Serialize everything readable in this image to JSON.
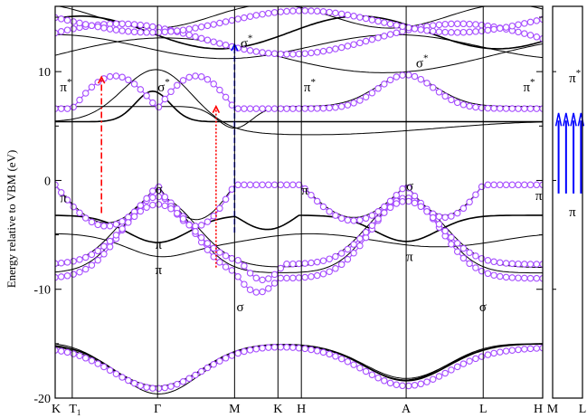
{
  "chart_data": {
    "type": "line",
    "title": "",
    "ylabel": "Energy relative to VBM (eV)",
    "ylim": [
      -20,
      16
    ],
    "yticks": [
      -20,
      -10,
      0,
      10
    ],
    "ytick_labels": [
      "-20",
      "-10",
      "0",
      "10"
    ],
    "grid": false,
    "legend": "none",
    "colors": {
      "bands": "#000000",
      "markers": "#a64dff",
      "marker_fill": "#ffffff",
      "arrow_red": "#ff0000",
      "arrow_blue": "#0000ff"
    },
    "panels": [
      {
        "id": "main",
        "x_points": [
          {
            "label": "K",
            "pos": 0.0
          },
          {
            "label": "T",
            "pos": 0.035,
            "subscript": "1"
          },
          {
            "label": "Γ",
            "pos": 0.21
          },
          {
            "label": "M",
            "pos": 0.368
          },
          {
            "label": "K",
            "pos": 0.457
          },
          {
            "label": "H",
            "pos": 0.505
          },
          {
            "label": "A",
            "pos": 0.72
          },
          {
            "label": "L",
            "pos": 0.878
          },
          {
            "label": "H",
            "pos": 1.0
          }
        ]
      },
      {
        "id": "inset",
        "x_points": [
          {
            "label": "M",
            "pos": 0.0
          },
          {
            "label": "L",
            "pos": 1.0
          }
        ]
      }
    ],
    "marked_bands_energy_points": [
      [
        0,
        -0.3
      ],
      [
        0.035,
        -0.8
      ],
      [
        0.1,
        -2.5
      ],
      [
        0.21,
        -1.5
      ],
      [
        0.3,
        -2.4
      ],
      [
        0.368,
        -4.8
      ],
      [
        0.457,
        -3.2
      ],
      [
        0.505,
        0.0
      ],
      [
        0.6,
        -0.6
      ],
      [
        0.72,
        -1.5
      ],
      [
        0.8,
        -0.8
      ],
      [
        0.878,
        -0.6
      ],
      [
        1.0,
        -0.2
      ]
    ],
    "annotations": [
      {
        "text": "π",
        "sup": "*",
        "x": 0.01,
        "y": 8.2
      },
      {
        "text": "σ",
        "sup": "*",
        "x": 0.21,
        "y": 8.2
      },
      {
        "text": "σ",
        "sup": "*",
        "x": 0.38,
        "y": 12.2
      },
      {
        "text": "π",
        "sup": "*",
        "x": 0.51,
        "y": 8.2
      },
      {
        "text": "σ",
        "sup": "*",
        "x": 0.74,
        "y": 10.4
      },
      {
        "text": "π",
        "sup": "*",
        "x": 0.96,
        "y": 8.2
      },
      {
        "text": "π",
        "sup": "",
        "x": 0.01,
        "y": -2.0
      },
      {
        "text": "σ",
        "sup": "",
        "x": 0.205,
        "y": -1.2
      },
      {
        "text": "π",
        "sup": "",
        "x": 0.205,
        "y": -6.3
      },
      {
        "text": "π",
        "sup": "",
        "x": 0.205,
        "y": -8.6
      },
      {
        "text": "σ",
        "sup": "",
        "x": 0.372,
        "y": -12.0
      },
      {
        "text": "π",
        "sup": "",
        "x": 0.505,
        "y": -1.3
      },
      {
        "text": "σ",
        "sup": "",
        "x": 0.72,
        "y": -0.9
      },
      {
        "text": "π",
        "sup": "",
        "x": 0.72,
        "y": -7.4
      },
      {
        "text": "σ",
        "sup": "",
        "x": 0.87,
        "y": -12.0
      },
      {
        "text": "π",
        "sup": "",
        "x": 0.985,
        "y": -1.8
      }
    ],
    "inset_annotations": [
      {
        "text": "π",
        "sup": "*",
        "x": 0.55,
        "y": 9.0
      },
      {
        "text": "π",
        "sup": "",
        "x": 0.55,
        "y": -3.3
      }
    ],
    "transitions": [
      {
        "style": "dash-dot",
        "color": "red",
        "x": 0.095,
        "from": -3.0,
        "to": 9.5
      },
      {
        "style": "dotted",
        "color": "red",
        "x": 0.33,
        "from": -8.0,
        "to": 6.8
      },
      {
        "style": "dashed",
        "color": "blue",
        "x": 0.368,
        "from": -4.8,
        "to": 12.5
      }
    ]
  }
}
